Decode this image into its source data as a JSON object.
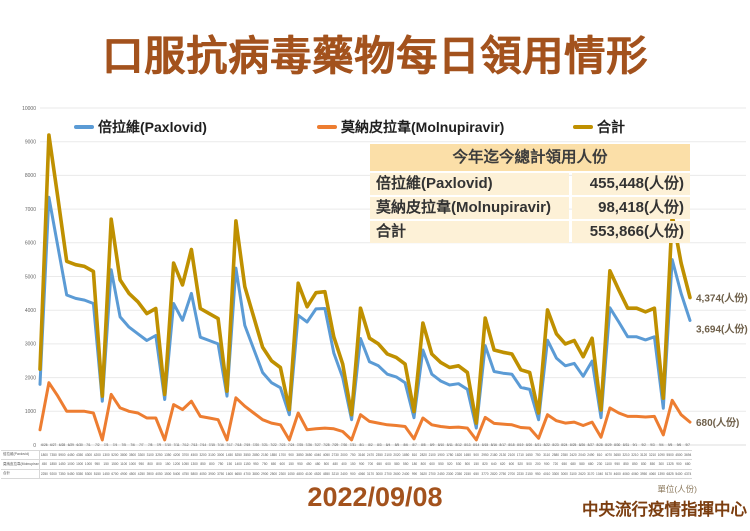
{
  "title": "口服抗病毒藥物每日領用情形",
  "legend": {
    "items": [
      {
        "label": "倍拉維(Paxlovid)",
        "color": "#5B9BD5"
      },
      {
        "label": "莫納皮拉韋(Molnupiravir)",
        "color": "#ED7D31"
      },
      {
        "label": "合計",
        "color": "#BF9000"
      }
    ]
  },
  "summary_table": {
    "header": "今年迄今總計領用人份",
    "rows": [
      {
        "label": "倍拉維(Paxlovid)",
        "value": "455,448(人份)"
      },
      {
        "label": "莫納皮拉韋(Molnupiravir)",
        "value": "98,418(人份)"
      },
      {
        "label": "合計",
        "value": "553,866(人份)"
      }
    ]
  },
  "chart_data": {
    "type": "line",
    "title": "口服抗病毒藥物每日領用情形",
    "xlabel": "",
    "ylabel": "",
    "ylim": [
      0,
      10000
    ],
    "yticks": [
      0,
      1000,
      2000,
      3000,
      4000,
      5000,
      6000,
      7000,
      8000,
      9000,
      10000
    ],
    "grid": true,
    "legend_position": "top",
    "x": [
      "6/26",
      "6/27",
      "6/28",
      "6/29",
      "6/30",
      "7/1",
      "7/2",
      "7/3",
      "7/4",
      "7/5",
      "7/6",
      "7/7",
      "7/8",
      "7/9",
      "7/10",
      "7/11",
      "7/12",
      "7/13",
      "7/14",
      "7/15",
      "7/16",
      "7/17",
      "7/18",
      "7/19",
      "7/20",
      "7/21",
      "7/22",
      "7/23",
      "7/24",
      "7/25",
      "7/26",
      "7/27",
      "7/28",
      "7/29",
      "7/30",
      "7/31",
      "8/1",
      "8/2",
      "8/3",
      "8/4",
      "8/5",
      "8/6",
      "8/7",
      "8/8",
      "8/9",
      "8/10",
      "8/11",
      "8/12",
      "8/13",
      "8/14",
      "8/15",
      "8/16",
      "8/17",
      "8/18",
      "8/19",
      "8/20",
      "8/21",
      "8/22",
      "8/23",
      "8/24",
      "8/25",
      "8/26",
      "8/27",
      "8/28",
      "8/29",
      "8/30",
      "8/31",
      "9/1",
      "9/2",
      "9/3",
      "9/4",
      "9/5",
      "9/6",
      "9/7"
    ],
    "series": [
      {
        "name": "倍拉維(Paxlovid)",
        "color": "#5B9BD5",
        "width": 3,
        "end_label": "3,694(人份)",
        "end_label_dy": 12,
        "values": [
          1800,
          7350,
          5900,
          4450,
          4350,
          4300,
          4200,
          1300,
          5200,
          3800,
          3500,
          3300,
          3100,
          3250,
          1350,
          4200,
          3700,
          4500,
          3200,
          3100,
          3000,
          1450,
          5250,
          3550,
          2850,
          2150,
          1850,
          1700,
          900,
          3850,
          3650,
          4040,
          4050,
          2730,
          2000,
          750,
          3160,
          2470,
          2350,
          2100,
          2020,
          1850,
          810,
          2820,
          2100,
          1900,
          1780,
          1820,
          1650,
          500,
          2950,
          2180,
          2130,
          2100,
          1710,
          1650,
          750,
          3110,
          2580,
          2350,
          2420,
          2040,
          2490,
          810,
          4070,
          3650,
          3210,
          3210,
          3120,
          3210,
          1090,
          5500,
          4500,
          3694
        ]
      },
      {
        "name": "莫納皮拉韋(Molnupiravir)",
        "color": "#ED7D31",
        "width": 3,
        "end_label": "680(人份)",
        "end_label_dy": 4,
        "values": [
          450,
          1850,
          1450,
          1000,
          1000,
          1000,
          950,
          150,
          1500,
          1100,
          1000,
          950,
          800,
          800,
          150,
          1200,
          1050,
          1300,
          850,
          800,
          750,
          150,
          1400,
          1150,
          950,
          750,
          650,
          600,
          150,
          950,
          450,
          480,
          500,
          480,
          400,
          150,
          900,
          700,
          650,
          600,
          580,
          550,
          180,
          800,
          600,
          550,
          520,
          530,
          500,
          150,
          820,
          640,
          620,
          600,
          520,
          500,
          200,
          900,
          720,
          650,
          680,
          580,
          680,
          230,
          1100,
          950,
          850,
          850,
          830,
          850,
          300,
          1325,
          900,
          680
        ]
      },
      {
        "name": "合計",
        "color": "#BF9000",
        "width": 3.6,
        "end_label": "4,374(人份)",
        "end_label_dy": 4,
        "values": [
          2250,
          9200,
          7350,
          5450,
          5350,
          5300,
          5150,
          1450,
          6700,
          4900,
          4500,
          4250,
          3900,
          4050,
          1500,
          5400,
          4750,
          5800,
          4050,
          3900,
          3750,
          1600,
          6650,
          4700,
          3800,
          2900,
          2500,
          2300,
          1050,
          4800,
          4100,
          4520,
          4550,
          3210,
          2400,
          900,
          4060,
          3170,
          3000,
          2700,
          2600,
          2400,
          990,
          3620,
          2700,
          2450,
          2300,
          2350,
          2150,
          650,
          3770,
          2820,
          2750,
          2700,
          2230,
          2150,
          950,
          4010,
          3300,
          3000,
          3100,
          2620,
          3170,
          1040,
          5170,
          4600,
          4060,
          4060,
          3950,
          4060,
          1390,
          6825,
          5400,
          4374
        ]
      }
    ]
  },
  "axis_table": {
    "row_labels": [
      "倍拉維(Paxlovid)",
      "莫納皮拉韋(Molnupiravir)",
      "合計"
    ]
  },
  "footer": {
    "date": "2022/09/08",
    "unit_label": "單位(人份)",
    "source": "中央流行疫情指揮中心"
  }
}
